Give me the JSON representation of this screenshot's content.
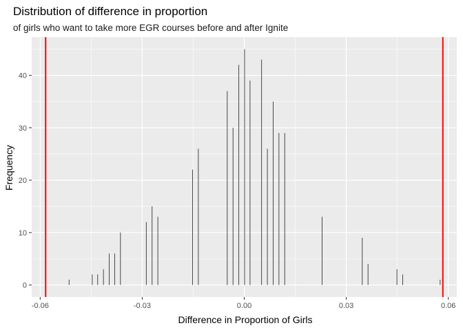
{
  "chart_data": {
    "type": "bar",
    "title": "Distribution of difference in proportion",
    "subtitle": "of girls who want to take more EGR courses before and after Ignite",
    "xlabel": "Difference in Proportion of Girls",
    "ylabel": "Frequency",
    "xlim": [
      -0.0625,
      0.0625
    ],
    "ylim": [
      -2.3,
      47.3
    ],
    "xticks": [
      {
        "value": -0.06,
        "label": "-0.06"
      },
      {
        "value": -0.03,
        "label": "-0.03"
      },
      {
        "value": 0.0,
        "label": "0.00"
      },
      {
        "value": 0.03,
        "label": "0.03"
      },
      {
        "value": 0.06,
        "label": "0.06"
      }
    ],
    "yticks": [
      {
        "value": 0,
        "label": "0"
      },
      {
        "value": 10,
        "label": "10"
      },
      {
        "value": 20,
        "label": "20"
      },
      {
        "value": 30,
        "label": "30"
      },
      {
        "value": 40,
        "label": "40"
      }
    ],
    "grid": true,
    "bars": [
      {
        "x": -0.0515,
        "y": 1
      },
      {
        "x": -0.0447,
        "y": 2
      },
      {
        "x": -0.0431,
        "y": 2
      },
      {
        "x": -0.0414,
        "y": 3
      },
      {
        "x": -0.0397,
        "y": 6
      },
      {
        "x": -0.0381,
        "y": 6
      },
      {
        "x": -0.0364,
        "y": 10
      },
      {
        "x": -0.0288,
        "y": 12
      },
      {
        "x": -0.0271,
        "y": 15
      },
      {
        "x": -0.0254,
        "y": 13
      },
      {
        "x": -0.0152,
        "y": 22
      },
      {
        "x": -0.0135,
        "y": 26
      },
      {
        "x": -0.005,
        "y": 37
      },
      {
        "x": -0.0033,
        "y": 30
      },
      {
        "x": -0.0016,
        "y": 42
      },
      {
        "x": 0.0001,
        "y": 45
      },
      {
        "x": 0.0017,
        "y": 39
      },
      {
        "x": 0.0051,
        "y": 43
      },
      {
        "x": 0.0068,
        "y": 26
      },
      {
        "x": 0.0085,
        "y": 35
      },
      {
        "x": 0.0102,
        "y": 29
      },
      {
        "x": 0.0119,
        "y": 29
      },
      {
        "x": 0.0229,
        "y": 13
      },
      {
        "x": 0.0347,
        "y": 9
      },
      {
        "x": 0.0364,
        "y": 4
      },
      {
        "x": 0.0449,
        "y": 3
      },
      {
        "x": 0.0466,
        "y": 2
      },
      {
        "x": 0.0576,
        "y": 1
      }
    ],
    "vlines": [
      {
        "x": -0.0584,
        "color": "#ff0000"
      },
      {
        "x": 0.0584,
        "color": "#ff0000"
      }
    ],
    "colors": {
      "panel": "#ebebeb",
      "grid_major": "#ffffff",
      "bar": "#333333"
    }
  }
}
